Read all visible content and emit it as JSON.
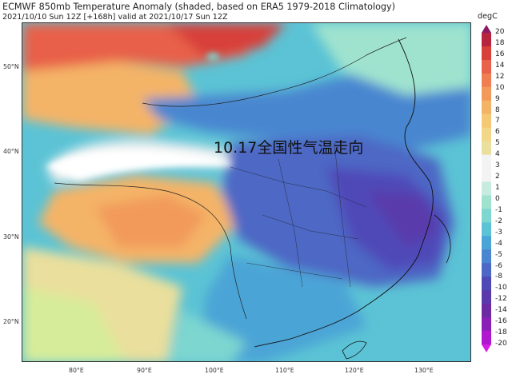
{
  "title": {
    "line1": "ECMWF 850mb Temperature Anomaly (shaded, based on ERA5 1979-2018 Climatology)",
    "line2": "2021/10/10 Sun 12Z [+168h] valid at 2021/10/17 Sun 12Z"
  },
  "overlay_text": "10.17全国性气温走向",
  "map": {
    "lat_labels": [
      "50°N",
      "40°N",
      "30°N",
      "20°N"
    ],
    "lon_labels": [
      "80°E",
      "90°E",
      "100°E",
      "110°E",
      "120°E",
      "130°E"
    ]
  },
  "colorbar": {
    "unit": "degC",
    "ticks": [
      "20",
      "18",
      "16",
      "14",
      "12",
      "10",
      "9",
      "8",
      "7",
      "6",
      "5",
      "4",
      "3",
      "2",
      "1",
      "0",
      "-1",
      "-2",
      "-3",
      "-4",
      "-5",
      "-6",
      "-8",
      "-10",
      "-12",
      "-14",
      "-16",
      "-18",
      "-20"
    ],
    "colors": [
      "#8a1a66",
      "#b7243d",
      "#d8403a",
      "#e8614a",
      "#ef7e52",
      "#f29a5a",
      "#f4b467",
      "#f5c875",
      "#f2d788",
      "#eadf9c",
      "#f3f3f3",
      "#f3f3f3",
      "#c7ebde",
      "#9fe3cf",
      "#7dd6d0",
      "#5bc3d5",
      "#4ba4d6",
      "#4a86d0",
      "#4d67c5",
      "#4f49b8",
      "#5a3aab",
      "#6c2aa3",
      "#8a20b7",
      "#b018cf",
      "#d41ee3"
    ]
  }
}
